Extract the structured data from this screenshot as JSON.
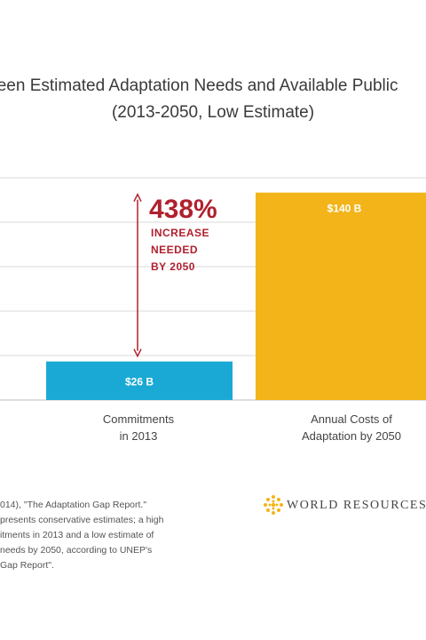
{
  "chart_data": {
    "type": "bar",
    "title_line1": "ween Estimated Adaptation Needs and Available Public",
    "title_line2": "(2013-2050, Low Estimate)",
    "categories": [
      "Commitments in 2013",
      "Annual Costs of Adaptation by 2050"
    ],
    "category_lines": [
      [
        "Commitments",
        "in 2013"
      ],
      [
        "Annual Costs of",
        "Adaptation by 2050"
      ]
    ],
    "values": [
      26,
      140
    ],
    "value_labels": [
      "$26 B",
      "$140 B"
    ],
    "bar_colors": [
      "#1aa9d4",
      "#f2b418"
    ],
    "ylim": [
      0,
      150
    ],
    "grid": true,
    "annotation": {
      "big": "438%",
      "lines": [
        "INCREASE",
        "NEEDED",
        "BY 2050"
      ],
      "color": "#b0202e"
    }
  },
  "source_lines": [
    "014), \"The Adaptation Gap Report.\"",
    "presents conservative estimates; a high",
    "itments in 2013 and a low estimate of",
    "needs by 2050, according to UNEP's",
    "Gap Report\"."
  ],
  "logo": {
    "text": "WORLD RESOURCES",
    "color": "#f2b418"
  }
}
